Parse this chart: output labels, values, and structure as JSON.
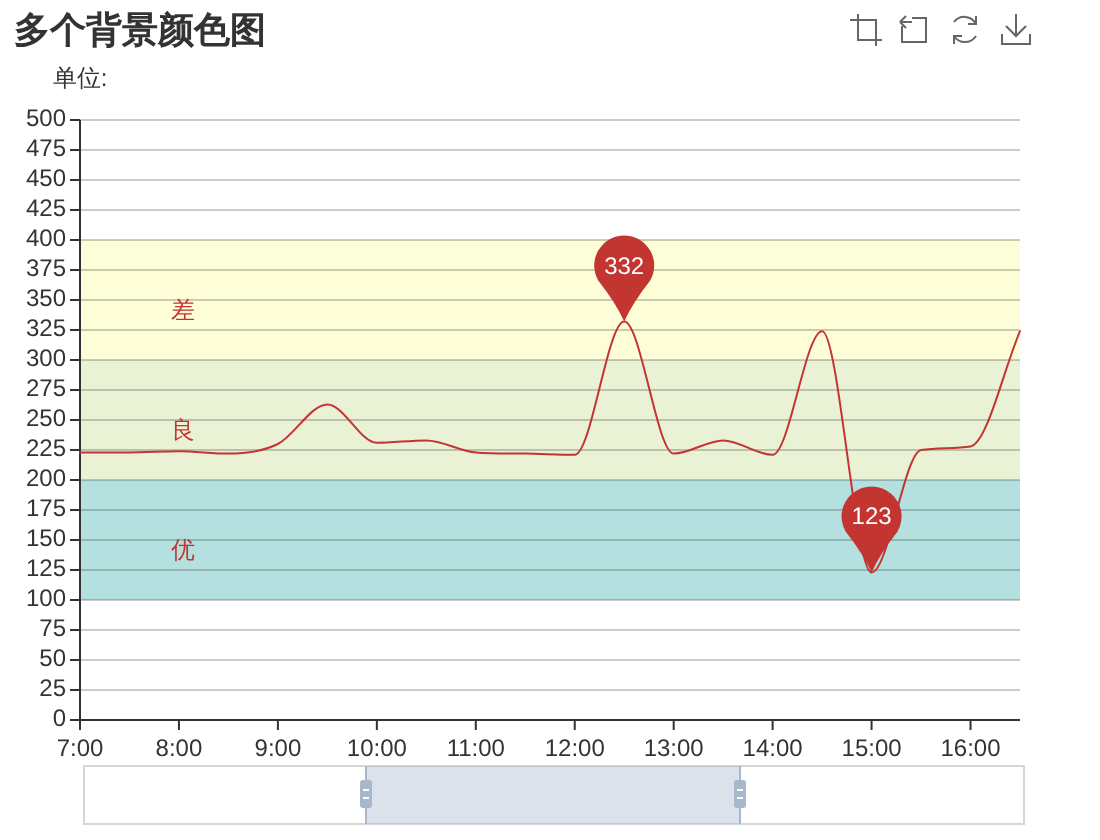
{
  "chart_data": {
    "type": "line",
    "title": "多个背景颜色图",
    "ylabel": "单位:",
    "x": [
      7,
      7.5,
      8,
      8.5,
      9,
      9.5,
      10,
      10.5,
      11,
      11.5,
      12,
      12.5,
      13,
      13.5,
      14,
      14.5,
      15,
      15.5,
      16,
      16.5
    ],
    "series": [
      {
        "color": "#c23531",
        "values": [
          223,
          223,
          224,
          222,
          230,
          263,
          231,
          233,
          223,
          222,
          221,
          332,
          222,
          233,
          221,
          324,
          123,
          225,
          228,
          324
        ],
        "value_labels": [
          null,
          null,
          null,
          null,
          null,
          null,
          null,
          null,
          null,
          null,
          null,
          "332",
          null,
          null,
          null,
          null,
          "123",
          null,
          null,
          null
        ]
      }
    ],
    "xlim": [
      7,
      16.5
    ],
    "xticks": [
      {
        "value": 7,
        "label": "7:00"
      },
      {
        "value": 8,
        "label": "8:00"
      },
      {
        "value": 9,
        "label": "9:00"
      },
      {
        "value": 10,
        "label": "10:00"
      },
      {
        "value": 11,
        "label": "11:00"
      },
      {
        "value": 12,
        "label": "12:00"
      },
      {
        "value": 13,
        "label": "13:00"
      },
      {
        "value": 14,
        "label": "14:00"
      },
      {
        "value": 15,
        "label": "15:00"
      },
      {
        "value": 16,
        "label": "16:00"
      }
    ],
    "ylim": [
      0,
      500
    ],
    "yticks": [
      0,
      25,
      50,
      75,
      100,
      125,
      150,
      175,
      200,
      225,
      250,
      275,
      300,
      325,
      350,
      375,
      400,
      425,
      450,
      475,
      500
    ],
    "grid": "y",
    "bands": [
      {
        "axis": "y",
        "from": 100,
        "to": 200,
        "label": "优",
        "color": "#b5e0e0"
      },
      {
        "axis": "y",
        "from": 200,
        "to": 300,
        "label": "良",
        "color": "#eaf2d6"
      },
      {
        "axis": "y",
        "from": 300,
        "to": 400,
        "label": "差",
        "color": "#fdfdd8"
      }
    ]
  }
}
